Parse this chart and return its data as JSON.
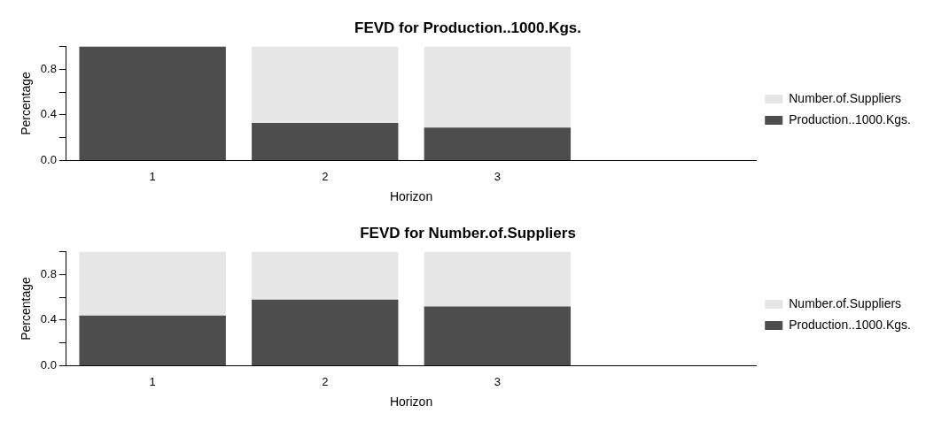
{
  "chart_data": [
    {
      "type": "bar",
      "title": "FEVD for Production..1000.Kgs.",
      "xlabel": "Horizon",
      "ylabel": "Percentage",
      "categories": [
        "1",
        "2",
        "3",
        null
      ],
      "stacked": true,
      "legend": "right",
      "grid": false,
      "ylim": [
        0,
        1
      ],
      "yticks": [
        {
          "value": 0,
          "label": "0.0"
        },
        {
          "value": 0.2,
          "label": null
        },
        {
          "value": 0.4,
          "label": "0.4"
        },
        {
          "value": 0.6,
          "label": null
        },
        {
          "value": 0.8,
          "label": "0.8"
        },
        {
          "value": 1,
          "label": null
        }
      ],
      "series": [
        {
          "name": "Production..1000.Kgs.",
          "color": "#4d4d4d",
          "values": [
            1,
            0.33,
            0.29,
            null
          ]
        },
        {
          "name": "Number.of.Suppliers",
          "color": "#e6e6e6",
          "values": [
            0,
            0.67,
            0.71,
            null
          ]
        }
      ]
    },
    {
      "type": "bar",
      "title": "FEVD for Number.of.Suppliers",
      "xlabel": "Horizon",
      "ylabel": "Percentage",
      "categories": [
        "1",
        "2",
        "3",
        null
      ],
      "stacked": true,
      "legend": "right",
      "grid": false,
      "ylim": [
        0,
        1
      ],
      "yticks": [
        {
          "value": 0,
          "label": "0.0"
        },
        {
          "value": 0.2,
          "label": null
        },
        {
          "value": 0.4,
          "label": "0.4"
        },
        {
          "value": 0.6,
          "label": null
        },
        {
          "value": 0.8,
          "label": "0.8"
        },
        {
          "value": 1,
          "label": null
        }
      ],
      "series": [
        {
          "name": "Production..1000.Kgs.",
          "color": "#4d4d4d",
          "values": [
            0.44,
            0.58,
            0.52,
            null
          ]
        },
        {
          "name": "Number.of.Suppliers",
          "color": "#e6e6e6",
          "values": [
            0.56,
            0.42,
            0.48,
            null
          ]
        }
      ]
    }
  ]
}
